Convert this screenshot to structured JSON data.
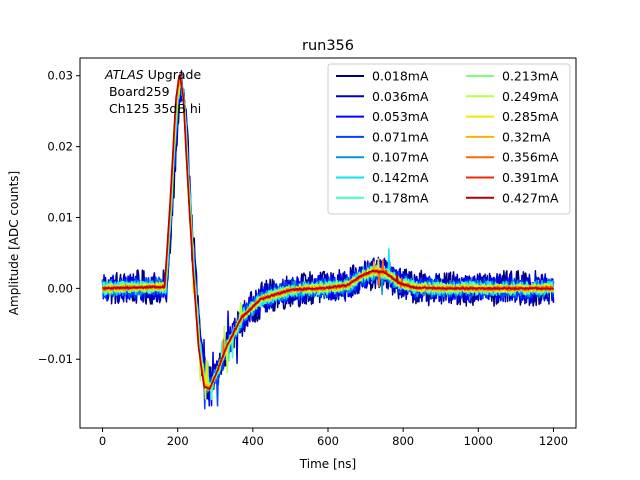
{
  "chart_data": {
    "type": "line",
    "title": "run356",
    "xlabel": "Time [ns]",
    "ylabel": "Amplitude [ADC counts]",
    "xlim": [
      -60,
      1260
    ],
    "ylim": [
      -0.0197,
      0.0325
    ],
    "xticks": [
      0,
      200,
      400,
      600,
      800,
      1000,
      1200
    ],
    "yticks": [
      -0.01,
      0.0,
      0.01,
      0.02,
      0.03
    ],
    "ytick_labels": [
      "−0.01",
      "0.00",
      "0.01",
      "0.02",
      "0.03"
    ],
    "grid": false,
    "legend_location": "upper-right",
    "legend_columns": 2,
    "annotation": {
      "italic_part": "ATLAS",
      "rest_line1": " Upgrade",
      "line2": " Board259",
      "line3": " Ch125 35dB hi"
    },
    "pulse_shape": {
      "description_of_mean_curve_points_ns_vs_adc": "shared mean pulse for all series",
      "x": [
        0,
        165,
        180,
        195,
        205,
        215,
        225,
        240,
        255,
        270,
        285,
        300,
        330,
        370,
        420,
        500,
        600,
        650,
        690,
        720,
        750,
        790,
        830,
        900,
        1000,
        1200
      ],
      "y": [
        0,
        0.0002,
        0.012,
        0.026,
        0.0295,
        0.026,
        0.016,
        0.003,
        -0.008,
        -0.0135,
        -0.0138,
        -0.012,
        -0.008,
        -0.004,
        -0.0015,
        -0.0002,
        0.0001,
        0.0004,
        0.0018,
        0.0024,
        0.0022,
        0.0007,
        0.0001,
        0.0,
        0.0,
        0.0
      ]
    },
    "series": [
      {
        "name": "0.018mA",
        "current_mA": 0.018,
        "color": "#00007f",
        "noise_amplitude": 0.0025
      },
      {
        "name": "0.036mA",
        "current_mA": 0.036,
        "color": "#0000c8",
        "noise_amplitude": 0.0021
      },
      {
        "name": "0.053mA",
        "current_mA": 0.053,
        "color": "#0000ff",
        "noise_amplitude": 0.0018
      },
      {
        "name": "0.071mA",
        "current_mA": 0.071,
        "color": "#0044ff",
        "noise_amplitude": 0.0015
      },
      {
        "name": "0.107mA",
        "current_mA": 0.107,
        "color": "#0098d8",
        "noise_amplitude": 0.0012
      },
      {
        "name": "0.142mA",
        "current_mA": 0.142,
        "color": "#10e0f0",
        "noise_amplitude": 0.001
      },
      {
        "name": "0.178mA",
        "current_mA": 0.178,
        "color": "#40ffc0",
        "noise_amplitude": 0.0009
      },
      {
        "name": "0.213mA",
        "current_mA": 0.213,
        "color": "#7cff78",
        "noise_amplitude": 0.0007
      },
      {
        "name": "0.249mA",
        "current_mA": 0.249,
        "color": "#b8ff3c",
        "noise_amplitude": 0.0006
      },
      {
        "name": "0.285mA",
        "current_mA": 0.285,
        "color": "#f0e800",
        "noise_amplitude": 0.0005
      },
      {
        "name": "0.32mA",
        "current_mA": 0.32,
        "color": "#ffae00",
        "noise_amplitude": 0.0004
      },
      {
        "name": "0.356mA",
        "current_mA": 0.356,
        "color": "#ff6a00",
        "noise_amplitude": 0.0003
      },
      {
        "name": "0.391mA",
        "current_mA": 0.391,
        "color": "#f02800",
        "noise_amplitude": 0.0002
      },
      {
        "name": "0.427mA",
        "current_mA": 0.427,
        "color": "#b40000",
        "noise_amplitude": 0.0001
      }
    ]
  }
}
